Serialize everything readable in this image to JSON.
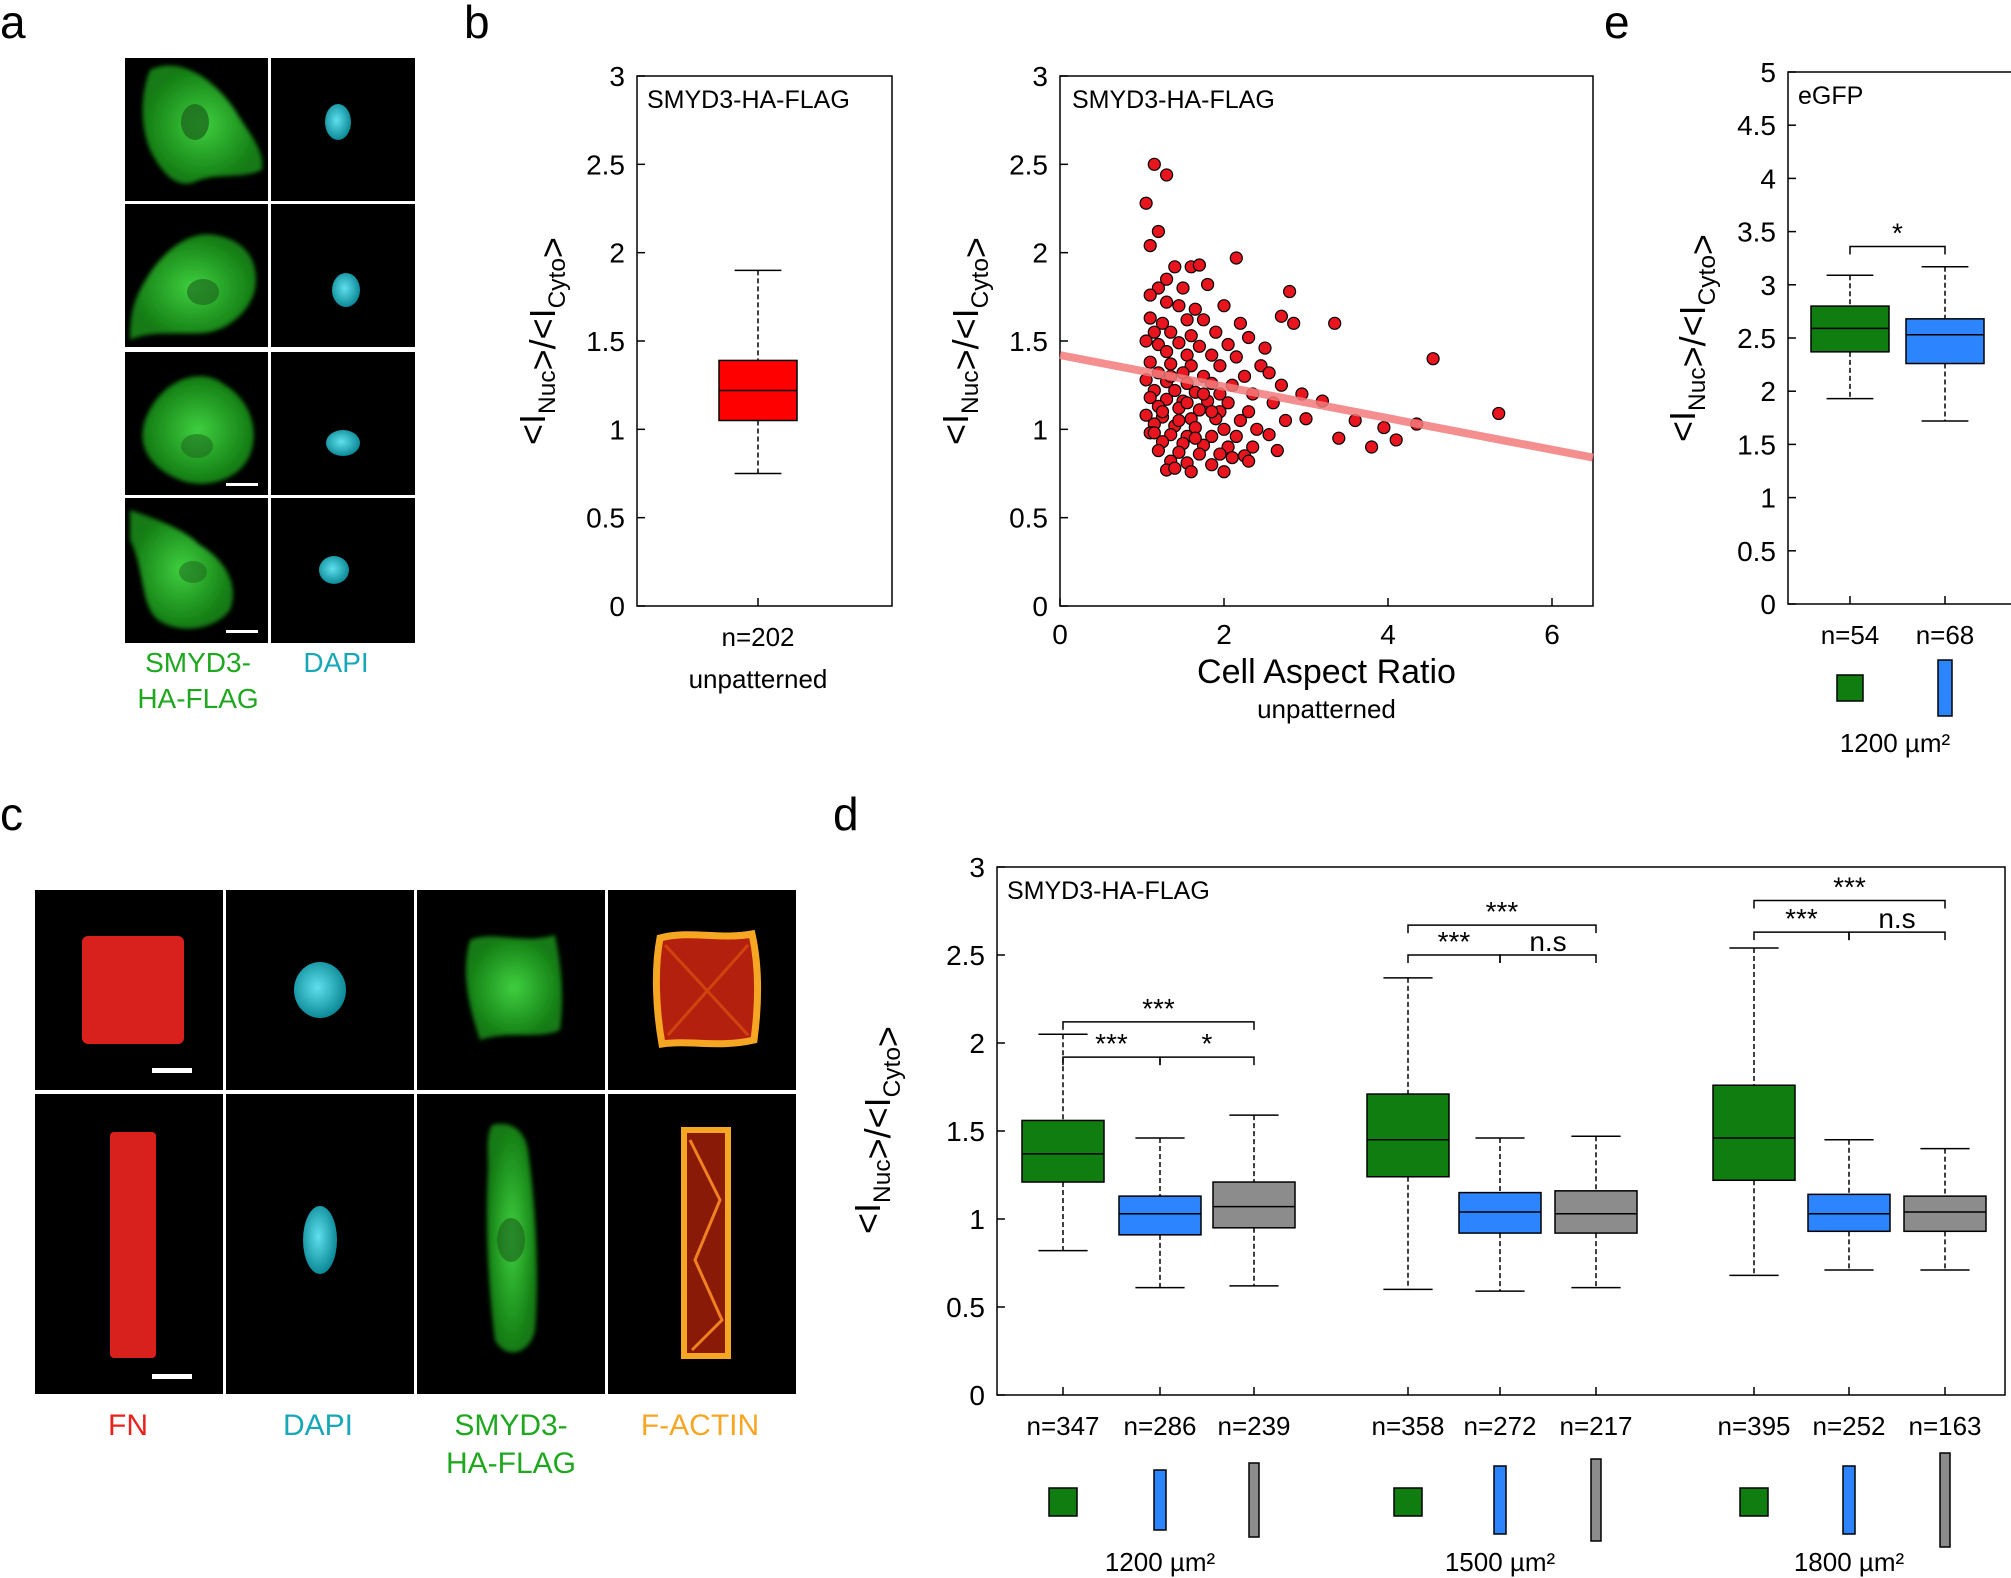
{
  "panel_labels": {
    "a": "a",
    "b": "b",
    "c": "c",
    "d": "d",
    "e": "e"
  },
  "panel_a": {
    "channel_labels": {
      "smyd3_line1": "SMYD3-",
      "smyd3_line2": "HA-FLAG",
      "dapi": "DAPI"
    },
    "colors": {
      "smyd3": "#1fa81f",
      "dapi": "#17a7b8"
    }
  },
  "panel_c": {
    "channel_labels": {
      "fn": "FN",
      "dapi": "DAPI",
      "smyd3_line1": "SMYD3-",
      "smyd3_line2": "HA-FLAG",
      "factin": "F-ACTIN"
    },
    "colors": {
      "fn": "#e8231e",
      "dapi": "#17a7b8",
      "smyd3": "#1fa81f",
      "factin": "#f5a623"
    }
  },
  "chart_data": [
    {
      "id": "b-box",
      "type": "box",
      "annotation": "SMYD3-HA-FLAG",
      "ylabel": "<INuc>/<ICyto>",
      "ylim": [
        0,
        3
      ],
      "yticks": [
        "0",
        "0.5",
        "1",
        "1.5",
        "2",
        "2.5",
        "3"
      ],
      "groups": [
        {
          "n_label": "n=202",
          "color": "#ff0000",
          "whisker_low": 0.75,
          "q1": 1.05,
          "median": 1.22,
          "q3": 1.39,
          "whisker_high": 1.9
        }
      ],
      "xlabel": "unpatterned"
    },
    {
      "id": "b-scatter",
      "type": "scatter",
      "annotation": "SMYD3-HA-FLAG",
      "ylabel": "<INuc>/<ICyto>",
      "xlabel": "Cell Aspect Ratio",
      "sublabel": "unpatterned",
      "xlim": [
        0,
        6.5
      ],
      "ylim": [
        0,
        3
      ],
      "xticks": [
        "0",
        "2",
        "4",
        "6"
      ],
      "yticks": [
        "0",
        "0.5",
        "1",
        "1.5",
        "2",
        "2.5",
        "3"
      ],
      "fit_line": {
        "x": [
          0,
          6.5
        ],
        "y": [
          1.42,
          0.84
        ],
        "color": "#f47c7c"
      },
      "point_color": "#e8141e",
      "points": [
        [
          1.15,
          2.5
        ],
        [
          1.3,
          2.44
        ],
        [
          1.05,
          2.28
        ],
        [
          1.2,
          2.12
        ],
        [
          1.1,
          2.04
        ],
        [
          2.15,
          1.97
        ],
        [
          1.4,
          1.92
        ],
        [
          1.6,
          1.92
        ],
        [
          1.7,
          1.93
        ],
        [
          1.3,
          1.85
        ],
        [
          1.2,
          1.8
        ],
        [
          1.5,
          1.8
        ],
        [
          1.8,
          1.82
        ],
        [
          1.1,
          1.76
        ],
        [
          2.8,
          1.78
        ],
        [
          1.3,
          1.72
        ],
        [
          1.45,
          1.7
        ],
        [
          1.65,
          1.68
        ],
        [
          2.0,
          1.7
        ],
        [
          2.7,
          1.64
        ],
        [
          1.1,
          1.63
        ],
        [
          1.25,
          1.6
        ],
        [
          1.55,
          1.62
        ],
        [
          1.75,
          1.62
        ],
        [
          2.2,
          1.6
        ],
        [
          2.85,
          1.6
        ],
        [
          3.35,
          1.6
        ],
        [
          1.15,
          1.55
        ],
        [
          1.35,
          1.55
        ],
        [
          1.6,
          1.53
        ],
        [
          1.9,
          1.55
        ],
        [
          2.3,
          1.52
        ],
        [
          1.05,
          1.5
        ],
        [
          1.2,
          1.48
        ],
        [
          1.45,
          1.49
        ],
        [
          1.7,
          1.47
        ],
        [
          2.05,
          1.48
        ],
        [
          2.5,
          1.46
        ],
        [
          1.3,
          1.44
        ],
        [
          1.55,
          1.42
        ],
        [
          1.85,
          1.42
        ],
        [
          2.15,
          1.41
        ],
        [
          4.55,
          1.4
        ],
        [
          1.1,
          1.38
        ],
        [
          1.35,
          1.37
        ],
        [
          1.6,
          1.36
        ],
        [
          1.95,
          1.36
        ],
        [
          2.45,
          1.36
        ],
        [
          1.2,
          1.32
        ],
        [
          1.5,
          1.32
        ],
        [
          1.75,
          1.3
        ],
        [
          2.25,
          1.3
        ],
        [
          2.55,
          1.32
        ],
        [
          1.05,
          1.28
        ],
        [
          1.3,
          1.27
        ],
        [
          1.55,
          1.26
        ],
        [
          1.85,
          1.26
        ],
        [
          2.1,
          1.25
        ],
        [
          2.7,
          1.25
        ],
        [
          1.15,
          1.22
        ],
        [
          1.4,
          1.22
        ],
        [
          1.65,
          1.21
        ],
        [
          1.95,
          1.2
        ],
        [
          2.35,
          1.2
        ],
        [
          2.95,
          1.2
        ],
        [
          1.1,
          1.18
        ],
        [
          1.3,
          1.17
        ],
        [
          1.5,
          1.16
        ],
        [
          1.8,
          1.16
        ],
        [
          2.05,
          1.15
        ],
        [
          2.6,
          1.15
        ],
        [
          3.2,
          1.16
        ],
        [
          1.2,
          1.13
        ],
        [
          1.45,
          1.12
        ],
        [
          1.7,
          1.11
        ],
        [
          1.95,
          1.1
        ],
        [
          2.3,
          1.1
        ],
        [
          1.05,
          1.08
        ],
        [
          1.25,
          1.07
        ],
        [
          1.6,
          1.06
        ],
        [
          1.9,
          1.06
        ],
        [
          2.2,
          1.05
        ],
        [
          2.75,
          1.05
        ],
        [
          3.0,
          1.06
        ],
        [
          3.6,
          1.05
        ],
        [
          5.35,
          1.09
        ],
        [
          1.15,
          1.03
        ],
        [
          1.4,
          1.02
        ],
        [
          1.65,
          1.01
        ],
        [
          2.0,
          1.0
        ],
        [
          2.4,
          1.0
        ],
        [
          4.35,
          1.03
        ],
        [
          1.1,
          0.98
        ],
        [
          1.35,
          0.97
        ],
        [
          1.55,
          0.96
        ],
        [
          1.85,
          0.96
        ],
        [
          2.15,
          0.96
        ],
        [
          2.55,
          0.97
        ],
        [
          3.95,
          1.01
        ],
        [
          1.25,
          0.93
        ],
        [
          1.5,
          0.92
        ],
        [
          1.75,
          0.91
        ],
        [
          2.05,
          0.9
        ],
        [
          2.35,
          0.9
        ],
        [
          3.4,
          0.95
        ],
        [
          4.1,
          0.94
        ],
        [
          1.2,
          0.88
        ],
        [
          1.45,
          0.87
        ],
        [
          1.7,
          0.86
        ],
        [
          1.95,
          0.86
        ],
        [
          2.25,
          0.85
        ],
        [
          3.8,
          0.9
        ],
        [
          1.35,
          0.82
        ],
        [
          1.55,
          0.81
        ],
        [
          1.85,
          0.8
        ],
        [
          2.1,
          0.84
        ],
        [
          2.65,
          0.88
        ],
        [
          1.3,
          0.77
        ],
        [
          1.6,
          0.76
        ],
        [
          2.0,
          0.76
        ],
        [
          1.4,
          0.78
        ],
        [
          2.3,
          0.82
        ],
        [
          1.15,
          0.98
        ],
        [
          1.25,
          1.1
        ],
        [
          1.35,
          1.3
        ],
        [
          1.45,
          1.05
        ],
        [
          1.55,
          1.15
        ],
        [
          1.65,
          0.95
        ],
        [
          1.75,
          1.2
        ],
        [
          1.85,
          1.1
        ]
      ]
    },
    {
      "id": "e-box",
      "type": "box",
      "annotation": "eGFP",
      "ylabel": "<INuc>/<ICyto>",
      "ylim": [
        0,
        5
      ],
      "yticks": [
        "0",
        "0.5",
        "1",
        "1.5",
        "2",
        "2.5",
        "3",
        "3.5",
        "4",
        "4.5",
        "5"
      ],
      "groups": [
        {
          "n_label": "n=54",
          "color": "#0f7d0f",
          "whisker_low": 1.93,
          "q1": 2.37,
          "median": 2.59,
          "q3": 2.8,
          "whisker_high": 3.09
        },
        {
          "n_label": "n=68",
          "color": "#2c84ff",
          "whisker_low": 1.72,
          "q1": 2.26,
          "median": 2.53,
          "q3": 2.68,
          "whisker_high": 3.17
        }
      ],
      "significance": [
        {
          "from": 0,
          "to": 1,
          "label": "*",
          "y": 3.36
        }
      ],
      "area_label": "1200 µm²"
    },
    {
      "id": "d-box",
      "type": "box",
      "annotation": "SMYD3-HA-FLAG",
      "ylabel": "<INuc>/<ICyto>",
      "ylim": [
        0,
        3
      ],
      "yticks": [
        "0",
        "0.5",
        "1",
        "1.5",
        "2",
        "2.5",
        "3"
      ],
      "groups": [
        {
          "n_label": "n=347",
          "color": "#0f7d0f",
          "whisker_low": 0.82,
          "q1": 1.21,
          "median": 1.37,
          "q3": 1.56,
          "whisker_high": 2.05
        },
        {
          "n_label": "n=286",
          "color": "#2c84ff",
          "whisker_low": 0.61,
          "q1": 0.91,
          "median": 1.03,
          "q3": 1.13,
          "whisker_high": 1.46
        },
        {
          "n_label": "n=239",
          "color": "#8c8c8c",
          "whisker_low": 0.62,
          "q1": 0.95,
          "median": 1.07,
          "q3": 1.21,
          "whisker_high": 1.59
        },
        {
          "n_label": "n=358",
          "color": "#0f7d0f",
          "whisker_low": 0.6,
          "q1": 1.24,
          "median": 1.45,
          "q3": 1.71,
          "whisker_high": 2.37
        },
        {
          "n_label": "n=272",
          "color": "#2c84ff",
          "whisker_low": 0.59,
          "q1": 0.92,
          "median": 1.04,
          "q3": 1.15,
          "whisker_high": 1.46
        },
        {
          "n_label": "n=217",
          "color": "#8c8c8c",
          "whisker_low": 0.61,
          "q1": 0.92,
          "median": 1.03,
          "q3": 1.16,
          "whisker_high": 1.47
        },
        {
          "n_label": "n=395",
          "color": "#0f7d0f",
          "whisker_low": 0.68,
          "q1": 1.22,
          "median": 1.46,
          "q3": 1.76,
          "whisker_high": 2.54
        },
        {
          "n_label": "n=252",
          "color": "#2c84ff",
          "whisker_low": 0.71,
          "q1": 0.93,
          "median": 1.03,
          "q3": 1.14,
          "whisker_high": 1.45
        },
        {
          "n_label": "n=163",
          "color": "#8c8c8c",
          "whisker_low": 0.71,
          "q1": 0.93,
          "median": 1.04,
          "q3": 1.13,
          "whisker_high": 1.4
        }
      ],
      "significance": [
        {
          "from": 0,
          "to": 1,
          "label": "***",
          "y": 1.92
        },
        {
          "from": 1,
          "to": 2,
          "label": "*",
          "y": 1.92
        },
        {
          "from": 0,
          "to": 2,
          "label": "***",
          "y": 2.12
        },
        {
          "from": 3,
          "to": 4,
          "label": "***",
          "y": 2.5
        },
        {
          "from": 4,
          "to": 5,
          "label": "n.s",
          "y": 2.5
        },
        {
          "from": 3,
          "to": 5,
          "label": "***",
          "y": 2.67
        },
        {
          "from": 6,
          "to": 7,
          "label": "***",
          "y": 2.63
        },
        {
          "from": 7,
          "to": 8,
          "label": "n.s",
          "y": 2.63
        },
        {
          "from": 6,
          "to": 8,
          "label": "***",
          "y": 2.81
        }
      ],
      "area_labels": [
        "1200 µm²",
        "1500 µm²",
        "1800 µm²"
      ]
    }
  ]
}
